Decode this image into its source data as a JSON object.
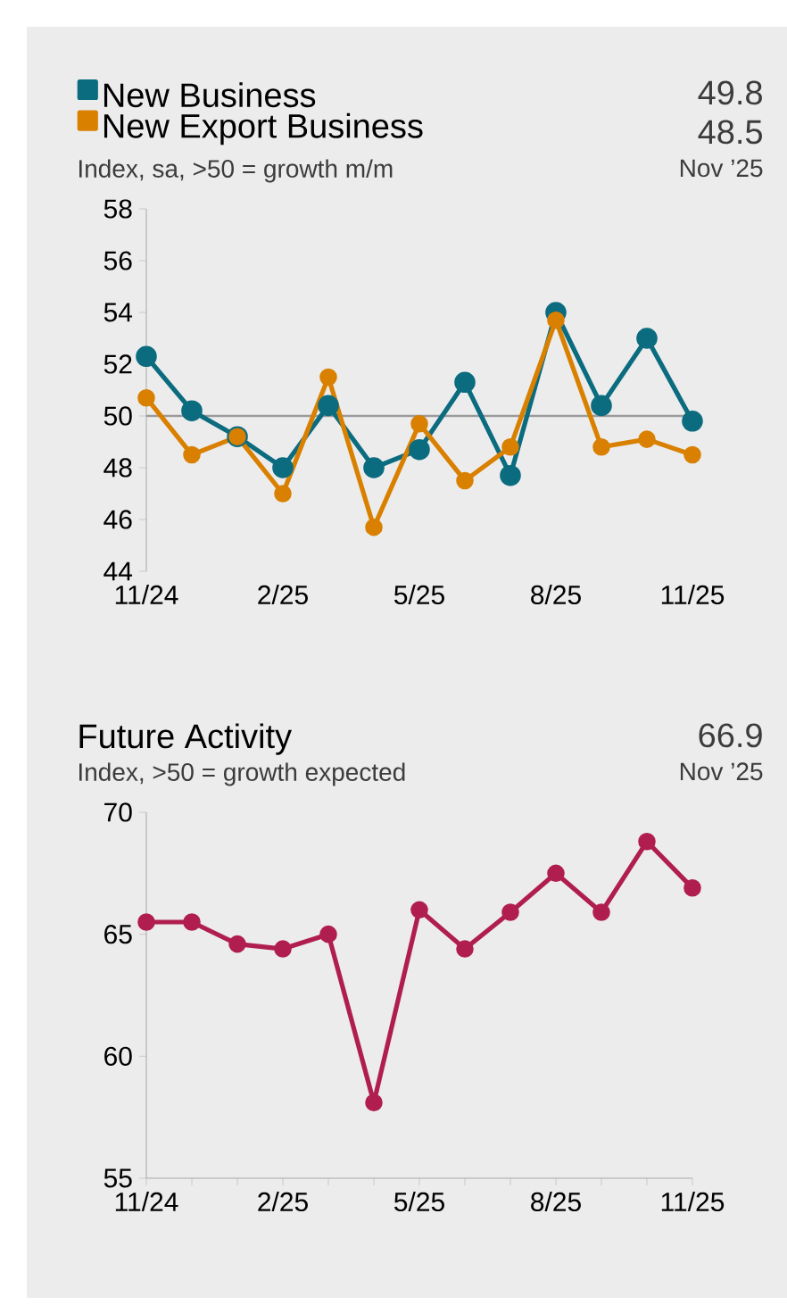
{
  "chart_data": [
    {
      "type": "line",
      "subtitle": "Index, sa, >50 = growth m/m",
      "annotations": [
        "49.8",
        "48.5",
        "Nov ’25"
      ],
      "categories": [
        "11/24",
        null,
        null,
        "2/25",
        null,
        null,
        "5/25",
        null,
        null,
        "8/25",
        null,
        null,
        "11/25"
      ],
      "series": [
        {
          "name": "New Business",
          "color": "#0b6b7f",
          "values": [
            52.3,
            50.2,
            49.2,
            48.0,
            50.4,
            48.0,
            48.7,
            51.3,
            47.7,
            54.0,
            50.4,
            53.0,
            49.8
          ]
        },
        {
          "name": "New Export Business",
          "color": "#d98000",
          "values": [
            50.7,
            48.5,
            49.2,
            47.0,
            51.5,
            45.7,
            49.7,
            47.5,
            48.8,
            53.7,
            48.8,
            49.1,
            48.5
          ]
        }
      ],
      "ylim": [
        44,
        58
      ],
      "yticks": [
        44,
        46,
        48,
        50,
        52,
        54,
        56,
        58
      ],
      "ref_lines": [
        {
          "axis": "y",
          "value": 50,
          "color": "#9a9a9a"
        }
      ],
      "legend": "top left",
      "marker": "circle",
      "grid": false
    },
    {
      "type": "line",
      "title": "Future Activity",
      "subtitle": "Index, >50 = growth expected",
      "annotations": [
        "66.9",
        "Nov ’25"
      ],
      "categories": [
        "11/24",
        null,
        null,
        "2/25",
        null,
        null,
        "5/25",
        null,
        null,
        "8/25",
        null,
        null,
        "11/25"
      ],
      "series": [
        {
          "color": "#b01e4f",
          "values": [
            65.5,
            65.5,
            64.6,
            64.4,
            65.0,
            58.1,
            66.0,
            64.4,
            65.9,
            67.5,
            65.9,
            68.8,
            66.9
          ]
        }
      ],
      "ylim": [
        55,
        70
      ],
      "yticks": [
        55,
        60,
        65,
        70
      ],
      "marker": "circle",
      "grid": false
    }
  ]
}
